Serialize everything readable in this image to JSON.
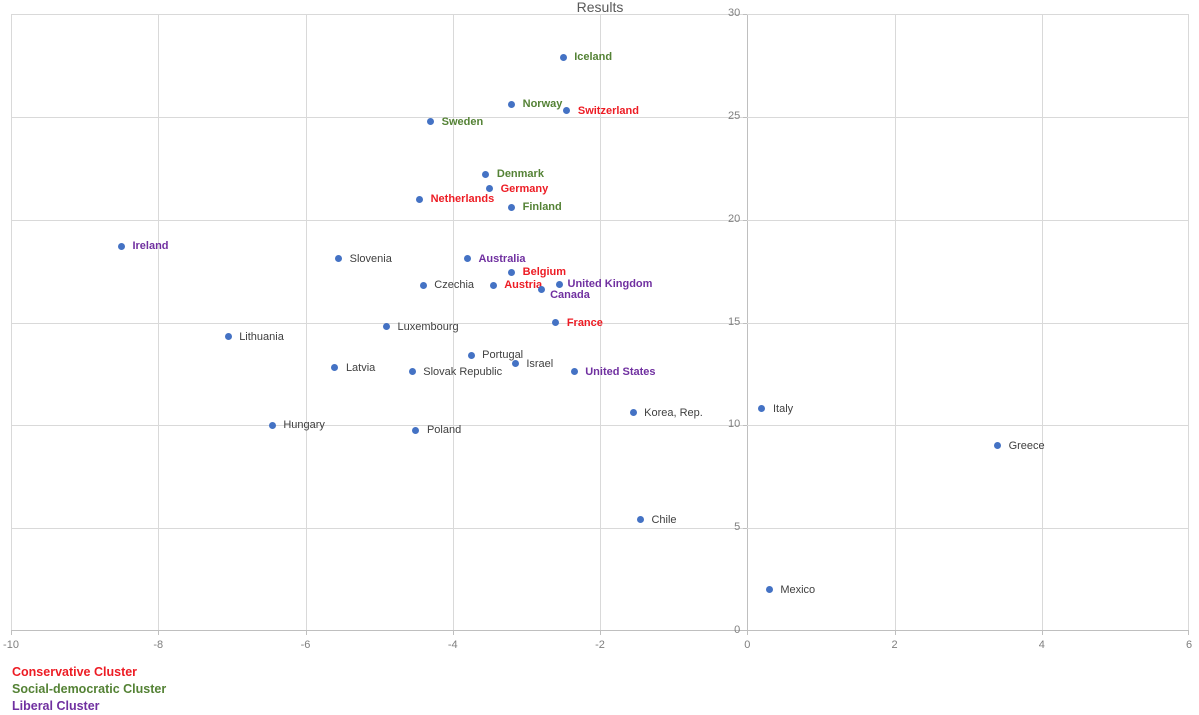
{
  "page": {
    "background": "#FFFFFF"
  },
  "chart_data": {
    "type": "scatter",
    "title": "Results",
    "xlabel": "",
    "ylabel": "",
    "xlim": [
      -10,
      6
    ],
    "ylim": [
      0,
      30
    ],
    "x_ticks": [
      -10,
      -8,
      -6,
      -4,
      -2,
      0,
      2,
      4,
      6
    ],
    "y_ticks": [
      0,
      5,
      10,
      15,
      20,
      25,
      30
    ],
    "grid": true,
    "legend_position": "bottom-left",
    "marker_color": "#4472C4",
    "colors": {
      "gridline": "#D9D9D9",
      "axis_line": "#BFBFBF",
      "axis_text": "#7F7F7F",
      "title_text": "#595959"
    },
    "clusters": {
      "conservative": {
        "label": "Conservative Cluster",
        "color": "#ED1C24"
      },
      "social_democratic": {
        "label": "Social-democratic Cluster",
        "color": "#548235"
      },
      "liberal": {
        "label": "Liberal Cluster",
        "color": "#7030A0"
      },
      "none": {
        "label": "",
        "color": "#404040"
      }
    },
    "legend": [
      {
        "label": "Conservative Cluster",
        "cluster": "conservative"
      },
      {
        "label": "Social-democratic Cluster",
        "cluster": "social_democratic"
      },
      {
        "label": "Liberal Cluster",
        "cluster": "liberal"
      }
    ],
    "points": [
      {
        "label": "Iceland",
        "x": -2.5,
        "y": 27.9,
        "cluster": "social_democratic"
      },
      {
        "label": "Norway",
        "x": -3.2,
        "y": 25.6,
        "cluster": "social_democratic"
      },
      {
        "label": "Switzerland",
        "x": -2.45,
        "y": 25.3,
        "cluster": "conservative"
      },
      {
        "label": "Sweden",
        "x": -4.3,
        "y": 24.75,
        "cluster": "social_democratic"
      },
      {
        "label": "Denmark",
        "x": -3.55,
        "y": 22.2,
        "cluster": "social_democratic"
      },
      {
        "label": "Germany",
        "x": -3.5,
        "y": 21.5,
        "cluster": "conservative"
      },
      {
        "label": "Netherlands",
        "x": -4.45,
        "y": 21.0,
        "cluster": "conservative"
      },
      {
        "label": "Finland",
        "x": -3.2,
        "y": 20.6,
        "cluster": "social_democratic"
      },
      {
        "label": "Ireland",
        "x": -8.5,
        "y": 18.7,
        "cluster": "liberal"
      },
      {
        "label": "Slovenia",
        "x": -5.55,
        "y": 18.1,
        "cluster": "none"
      },
      {
        "label": "Australia",
        "x": -3.8,
        "y": 18.1,
        "cluster": "liberal"
      },
      {
        "label": "Belgium",
        "x": -3.2,
        "y": 17.45,
        "cluster": "conservative"
      },
      {
        "label": "Czechia",
        "x": -4.4,
        "y": 16.8,
        "cluster": "none"
      },
      {
        "label": "Austria",
        "x": -3.45,
        "y": 16.8,
        "cluster": "conservative"
      },
      {
        "label": "United Kingdom",
        "x": -2.55,
        "y": 16.85,
        "cluster": "liberal",
        "label_dx": 8
      },
      {
        "label": "Canada",
        "x": -2.8,
        "y": 16.6,
        "cluster": "liberal",
        "label_dx": 9,
        "label_dy": 5
      },
      {
        "label": "France",
        "x": -2.6,
        "y": 15.0,
        "cluster": "conservative"
      },
      {
        "label": "Luxembourg",
        "x": -4.9,
        "y": 14.8,
        "cluster": "none"
      },
      {
        "label": "Lithuania",
        "x": -7.05,
        "y": 14.3,
        "cluster": "none"
      },
      {
        "label": "Portugal",
        "x": -3.75,
        "y": 13.4,
        "cluster": "none"
      },
      {
        "label": "Israel",
        "x": -3.15,
        "y": 13.0,
        "cluster": "none"
      },
      {
        "label": "Latvia",
        "x": -5.6,
        "y": 12.8,
        "cluster": "none"
      },
      {
        "label": "Slovak Republic",
        "x": -4.55,
        "y": 12.6,
        "cluster": "none"
      },
      {
        "label": "United States",
        "x": -2.35,
        "y": 12.6,
        "cluster": "liberal"
      },
      {
        "label": "Korea, Rep.",
        "x": -1.55,
        "y": 10.6,
        "cluster": "none"
      },
      {
        "label": "Italy",
        "x": 0.2,
        "y": 10.8,
        "cluster": "none"
      },
      {
        "label": "Hungary",
        "x": -6.45,
        "y": 10.0,
        "cluster": "none"
      },
      {
        "label": "Poland",
        "x": -4.5,
        "y": 9.75,
        "cluster": "none"
      },
      {
        "label": "Greece",
        "x": 3.4,
        "y": 9.0,
        "cluster": "none"
      },
      {
        "label": "Chile",
        "x": -1.45,
        "y": 5.4,
        "cluster": "none"
      },
      {
        "label": "Mexico",
        "x": 0.3,
        "y": 2.0,
        "cluster": "none"
      }
    ]
  }
}
